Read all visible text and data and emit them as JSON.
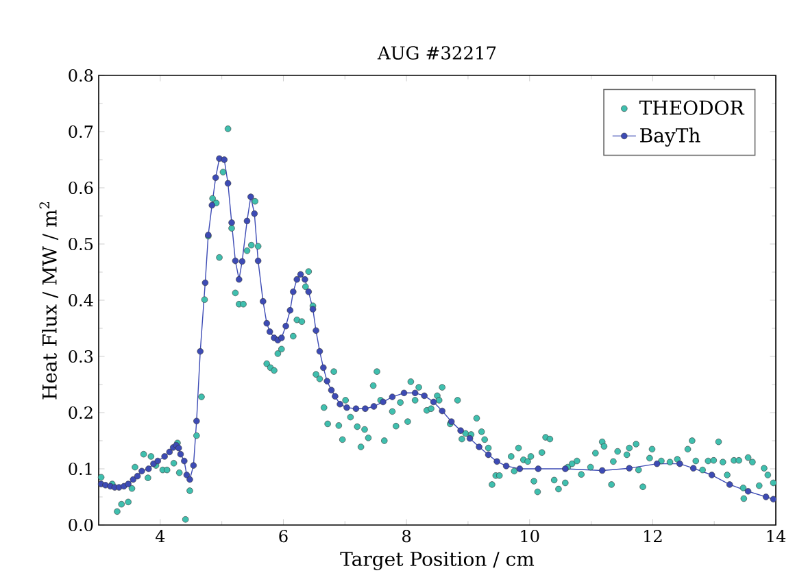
{
  "chart_data": {
    "type": "line",
    "title": "AUG #32217",
    "xlabel": "Target Position / cm",
    "ylabel": "Heat Flux / MW / m$^{2}$",
    "xlim": [
      3,
      14
    ],
    "xticks": [
      4,
      6,
      8,
      10,
      12,
      14
    ],
    "ylim": [
      0,
      0.8
    ],
    "yticks": [
      {
        "value": 0,
        "label": "0.0"
      },
      0.1,
      0.2,
      0.3,
      0.4,
      0.5,
      0.6,
      0.7,
      0.8
    ],
    "grid": false,
    "legend": "top right",
    "series": [
      {
        "name": "THEODOR",
        "type": "scatter",
        "marker": "circle",
        "color": "#3fbfae",
        "x": [
          3.04,
          3.22,
          3.3,
          3.37,
          3.48,
          3.54,
          3.59,
          3.73,
          3.8,
          3.85,
          3.93,
          4.04,
          4.11,
          4.22,
          4.28,
          4.31,
          4.41,
          4.48,
          4.59,
          4.67,
          4.72,
          4.78,
          4.85,
          4.91,
          4.96,
          5.02,
          5.1,
          5.16,
          5.22,
          5.28,
          5.35,
          5.41,
          5.48,
          5.54,
          5.59,
          5.73,
          5.79,
          5.85,
          5.91,
          5.97,
          6.16,
          6.22,
          6.3,
          6.36,
          6.41,
          6.48,
          6.53,
          6.59,
          6.66,
          6.72,
          6.82,
          6.9,
          6.96,
          7.01,
          7.09,
          7.2,
          7.26,
          7.32,
          7.38,
          7.46,
          7.52,
          7.58,
          7.64,
          7.77,
          7.83,
          7.9,
          8.02,
          8.07,
          8.14,
          8.2,
          8.33,
          8.4,
          8.5,
          8.53,
          8.58,
          8.71,
          8.83,
          8.9,
          8.96,
          9.05,
          9.14,
          9.22,
          9.27,
          9.33,
          9.39,
          9.45,
          9.51,
          9.7,
          9.75,
          9.82,
          9.9,
          9.97,
          10.02,
          10.07,
          10.13,
          10.2,
          10.26,
          10.33,
          10.4,
          10.47,
          10.58,
          10.62,
          10.69,
          10.77,
          10.84,
          10.99,
          11.07,
          11.18,
          11.21,
          11.33,
          11.36,
          11.43,
          11.58,
          11.62,
          11.73,
          11.77,
          11.84,
          11.95,
          11.99,
          12.14,
          12.28,
          12.4,
          12.57,
          12.64,
          12.7,
          12.81,
          12.9,
          12.99,
          13.07,
          13.14,
          13.21,
          13.32,
          13.4,
          13.47,
          13.48,
          13.55,
          13.62,
          13.73,
          13.81,
          13.87,
          13.96
        ],
        "values": [
          0.085,
          0.073,
          0.024,
          0.037,
          0.041,
          0.065,
          0.103,
          0.126,
          0.084,
          0.122,
          0.106,
          0.098,
          0.098,
          0.11,
          0.146,
          0.093,
          0.01,
          0.061,
          0.159,
          0.228,
          0.401,
          0.514,
          0.581,
          0.573,
          0.476,
          0.628,
          0.705,
          0.528,
          0.413,
          0.393,
          0.393,
          0.488,
          0.498,
          0.576,
          0.496,
          0.287,
          0.28,
          0.275,
          0.305,
          0.313,
          0.336,
          0.365,
          0.362,
          0.424,
          0.451,
          0.39,
          0.268,
          0.26,
          0.209,
          0.18,
          0.273,
          0.177,
          0.152,
          0.222,
          0.192,
          0.175,
          0.139,
          0.17,
          0.155,
          0.248,
          0.273,
          0.222,
          0.15,
          0.202,
          0.176,
          0.218,
          0.184,
          0.255,
          0.222,
          0.245,
          0.204,
          0.207,
          0.23,
          0.222,
          0.245,
          0.18,
          0.222,
          0.153,
          0.163,
          0.161,
          0.19,
          0.166,
          0.152,
          0.137,
          0.072,
          0.088,
          0.088,
          0.122,
          0.096,
          0.137,
          0.116,
          0.113,
          0.122,
          0.078,
          0.059,
          0.129,
          0.156,
          0.153,
          0.08,
          0.064,
          0.075,
          0.103,
          0.109,
          0.114,
          0.09,
          0.103,
          0.128,
          0.148,
          0.14,
          0.072,
          0.113,
          0.131,
          0.125,
          0.137,
          0.144,
          0.098,
          0.068,
          0.119,
          0.135,
          0.114,
          0.112,
          0.117,
          0.135,
          0.15,
          0.114,
          0.098,
          0.114,
          0.115,
          0.148,
          0.112,
          0.089,
          0.115,
          0.115,
          0.066,
          0.047,
          0.12,
          0.112,
          0.07,
          0.101,
          0.089,
          0.075
        ]
      },
      {
        "name": "BayTh",
        "marker": "circle",
        "line_style": "solid",
        "color": "#3d4bb5",
        "x": [
          3.04,
          3.11,
          3.19,
          3.26,
          3.33,
          3.41,
          3.48,
          3.56,
          3.63,
          3.7,
          3.81,
          3.89,
          3.96,
          4.07,
          4.15,
          4.21,
          4.26,
          4.3,
          4.33,
          4.39,
          4.43,
          4.48,
          4.54,
          4.59,
          4.65,
          4.73,
          4.78,
          4.84,
          4.9,
          4.96,
          5.04,
          5.1,
          5.16,
          5.22,
          5.28,
          5.33,
          5.41,
          5.47,
          5.53,
          5.59,
          5.67,
          5.73,
          5.78,
          5.85,
          5.91,
          5.97,
          6.04,
          6.11,
          6.16,
          6.22,
          6.28,
          6.35,
          6.41,
          6.48,
          6.53,
          6.59,
          6.65,
          6.71,
          6.78,
          6.84,
          6.92,
          7.03,
          7.18,
          7.33,
          7.47,
          7.62,
          7.77,
          7.96,
          8.14,
          8.29,
          8.44,
          8.58,
          8.73,
          8.88,
          9.03,
          9.18,
          9.33,
          9.47,
          9.62,
          9.84,
          10.14,
          10.58,
          11.18,
          11.62,
          12.07,
          12.44,
          12.66,
          12.96,
          13.25,
          13.55,
          13.84,
          13.96
        ],
        "values": [
          0.073,
          0.071,
          0.069,
          0.067,
          0.067,
          0.069,
          0.073,
          0.081,
          0.087,
          0.096,
          0.1,
          0.109,
          0.114,
          0.122,
          0.13,
          0.138,
          0.142,
          0.137,
          0.126,
          0.114,
          0.089,
          0.081,
          0.106,
          0.185,
          0.309,
          0.431,
          0.516,
          0.569,
          0.618,
          0.652,
          0.65,
          0.608,
          0.538,
          0.47,
          0.437,
          0.469,
          0.541,
          0.584,
          0.554,
          0.47,
          0.398,
          0.359,
          0.344,
          0.333,
          0.329,
          0.333,
          0.354,
          0.382,
          0.415,
          0.437,
          0.446,
          0.437,
          0.415,
          0.384,
          0.346,
          0.309,
          0.28,
          0.256,
          0.24,
          0.229,
          0.215,
          0.209,
          0.207,
          0.207,
          0.211,
          0.219,
          0.228,
          0.235,
          0.235,
          0.23,
          0.219,
          0.203,
          0.184,
          0.168,
          0.154,
          0.139,
          0.125,
          0.113,
          0.105,
          0.1,
          0.1,
          0.1,
          0.097,
          0.101,
          0.109,
          0.109,
          0.101,
          0.089,
          0.072,
          0.06,
          0.05,
          0.046
        ]
      }
    ]
  }
}
